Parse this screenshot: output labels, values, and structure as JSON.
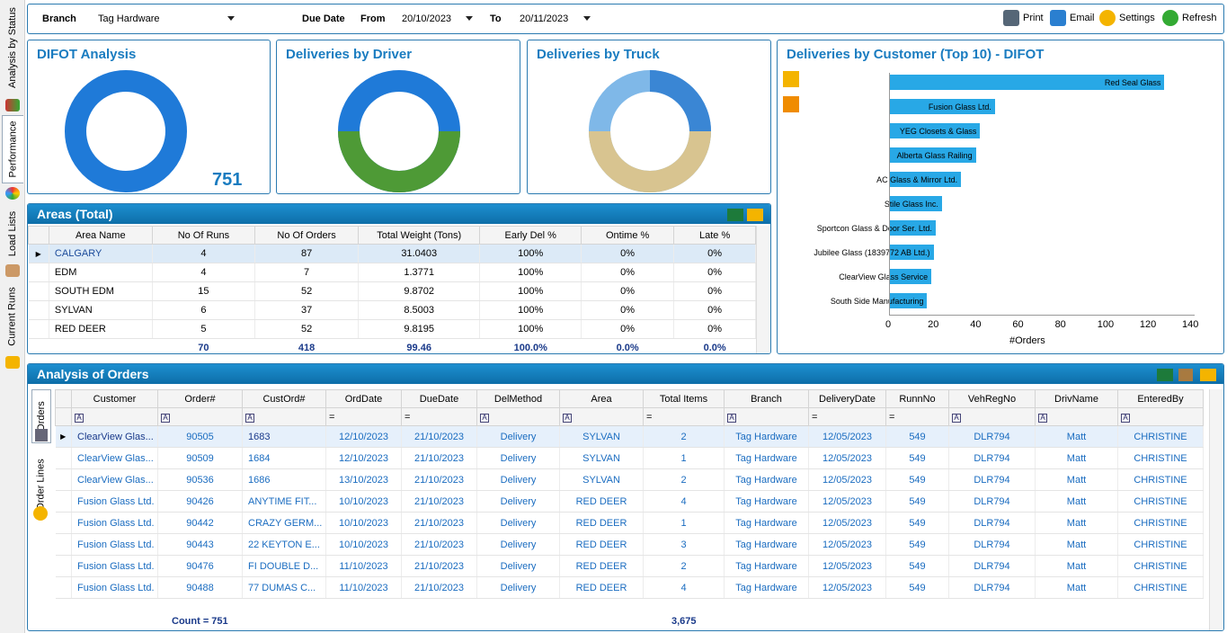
{
  "sidebar": {
    "tabs": [
      "Analysis by Status",
      "Performance",
      "Load Lists",
      "Current Runs"
    ]
  },
  "toolbar": {
    "branch_label": "Branch",
    "branch_value": "Tag Hardware",
    "due_label": "Due Date",
    "from_label": "From",
    "from_value": "20/10/2023",
    "to_label": "To",
    "to_value": "20/11/2023",
    "print": "Print",
    "email": "Email",
    "settings": "Settings",
    "refresh": "Refresh"
  },
  "difot": {
    "title": "DIFOT Analysis",
    "value": "751"
  },
  "driver": {
    "title": "Deliveries by Driver"
  },
  "truck": {
    "title": "Deliveries by Truck"
  },
  "customer_chart": {
    "title": "Deliveries by Customer (Top 10) - DIFOT",
    "xlabel": "#Orders"
  },
  "chart_data": {
    "type": "bar",
    "orientation": "horizontal",
    "title": "Deliveries by Customer (Top 10) - DIFOT",
    "xlabel": "#Orders",
    "xlim": [
      0,
      140
    ],
    "ticks": [
      "0",
      "20",
      "40",
      "60",
      "80",
      "100",
      "120",
      "140"
    ],
    "categories": [
      "Red Seal Glass",
      "Fusion Glass Ltd.",
      "YEG Closets & Glass",
      "Alberta Glass Railing",
      "AC Glass & Mirror Ltd.",
      "Stile Glass Inc.",
      "Sportcon Glass & Door Ser. Ltd.",
      "Jubilee Glass (1839772 AB Ltd.)",
      "ClearView Glass Service",
      "South Side Manufacturing"
    ],
    "values": [
      130,
      50,
      43,
      41,
      34,
      25,
      22,
      21,
      20,
      18
    ]
  },
  "areas": {
    "title": "Areas (Total)",
    "columns": [
      "Area Name",
      "No Of Runs",
      "No Of Orders",
      "Total Weight (Tons)",
      "Early Del %",
      "Ontime %",
      "Late %"
    ],
    "rows": [
      [
        "CALGARY",
        "4",
        "87",
        "31.0403",
        "100%",
        "0%",
        "0%"
      ],
      [
        "EDM",
        "4",
        "7",
        "1.3771",
        "100%",
        "0%",
        "0%"
      ],
      [
        "SOUTH EDM",
        "15",
        "52",
        "9.8702",
        "100%",
        "0%",
        "0%"
      ],
      [
        "SYLVAN",
        "6",
        "37",
        "8.5003",
        "100%",
        "0%",
        "0%"
      ],
      [
        "RED DEER",
        "5",
        "52",
        "9.8195",
        "100%",
        "0%",
        "0%"
      ]
    ],
    "totals": [
      "",
      "70",
      "418",
      "99.46",
      "100.0%",
      "0.0%",
      "0.0%"
    ]
  },
  "orders": {
    "title": "Analysis of Orders",
    "side_tabs": [
      "Orders",
      "Order Lines"
    ],
    "columns": [
      "Customer",
      "Order#",
      "CustOrd#",
      "OrdDate",
      "DueDate",
      "DelMethod",
      "Area",
      "Total Items",
      "Branch",
      "DeliveryDate",
      "RunnNo",
      "VehRegNo",
      "DrivName",
      "EnteredBy"
    ],
    "rows": [
      [
        "ClearView Glas...",
        "90505",
        "1683",
        "12/10/2023",
        "21/10/2023",
        "Delivery",
        "SYLVAN",
        "2",
        "Tag Hardware",
        "12/05/2023",
        "549",
        "DLR794",
        "Matt",
        "CHRISTINE"
      ],
      [
        "ClearView Glas...",
        "90509",
        "1684",
        "12/10/2023",
        "21/10/2023",
        "Delivery",
        "SYLVAN",
        "1",
        "Tag Hardware",
        "12/05/2023",
        "549",
        "DLR794",
        "Matt",
        "CHRISTINE"
      ],
      [
        "ClearView Glas...",
        "90536",
        "1686",
        "13/10/2023",
        "21/10/2023",
        "Delivery",
        "SYLVAN",
        "2",
        "Tag Hardware",
        "12/05/2023",
        "549",
        "DLR794",
        "Matt",
        "CHRISTINE"
      ],
      [
        "Fusion Glass Ltd.",
        "90426",
        "ANYTIME FIT...",
        "10/10/2023",
        "21/10/2023",
        "Delivery",
        "RED DEER",
        "4",
        "Tag Hardware",
        "12/05/2023",
        "549",
        "DLR794",
        "Matt",
        "CHRISTINE"
      ],
      [
        "Fusion Glass Ltd.",
        "90442",
        "CRAZY GERM...",
        "10/10/2023",
        "21/10/2023",
        "Delivery",
        "RED DEER",
        "1",
        "Tag Hardware",
        "12/05/2023",
        "549",
        "DLR794",
        "Matt",
        "CHRISTINE"
      ],
      [
        "Fusion Glass Ltd.",
        "90443",
        "22 KEYTON E...",
        "10/10/2023",
        "21/10/2023",
        "Delivery",
        "RED DEER",
        "3",
        "Tag Hardware",
        "12/05/2023",
        "549",
        "DLR794",
        "Matt",
        "CHRISTINE"
      ],
      [
        "Fusion Glass Ltd.",
        "90476",
        "FI DOUBLE D...",
        "11/10/2023",
        "21/10/2023",
        "Delivery",
        "RED DEER",
        "2",
        "Tag Hardware",
        "12/05/2023",
        "549",
        "DLR794",
        "Matt",
        "CHRISTINE"
      ],
      [
        "Fusion Glass Ltd.",
        "90488",
        "77 DUMAS C...",
        "11/10/2023",
        "21/10/2023",
        "Delivery",
        "RED DEER",
        "4",
        "Tag Hardware",
        "12/05/2023",
        "549",
        "DLR794",
        "Matt",
        "CHRISTINE"
      ]
    ],
    "count": "Count = 751",
    "total_items": "3,675"
  }
}
